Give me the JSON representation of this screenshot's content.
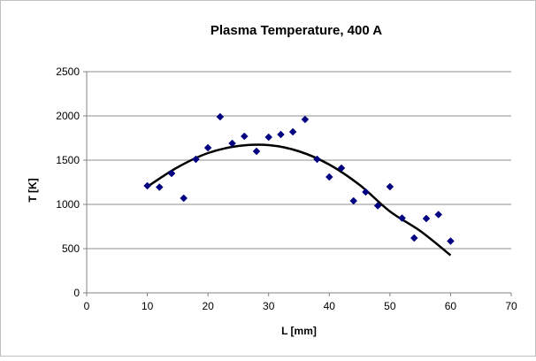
{
  "chart_data": {
    "type": "scatter",
    "title": "Plasma Temperature, 400 A",
    "xlabel": "L [mm]",
    "ylabel": "T [K]",
    "xlim": [
      0,
      70
    ],
    "ylim": [
      0,
      2500
    ],
    "x_ticks": [
      0,
      10,
      20,
      30,
      40,
      50,
      60,
      70
    ],
    "y_ticks": [
      0,
      500,
      1000,
      1500,
      2000,
      2500
    ],
    "x_tick_labels": [
      "0",
      "10",
      "20",
      "30",
      "40",
      "50",
      "60",
      "70"
    ],
    "y_tick_labels": [
      "0",
      "500",
      "1000",
      "1500",
      "2000",
      "2500"
    ],
    "grid": "horizontal",
    "legend": "none",
    "series": [
      {
        "marker": "diamond",
        "color": "#000080",
        "points": [
          [
            10,
            1210
          ],
          [
            12,
            1195
          ],
          [
            14,
            1350
          ],
          [
            16,
            1070
          ],
          [
            18,
            1510
          ],
          [
            20,
            1640
          ],
          [
            22,
            1990
          ],
          [
            24,
            1690
          ],
          [
            26,
            1770
          ],
          [
            28,
            1600
          ],
          [
            30,
            1760
          ],
          [
            32,
            1790
          ],
          [
            34,
            1820
          ],
          [
            36,
            1960
          ],
          [
            38,
            1510
          ],
          [
            40,
            1310
          ],
          [
            42,
            1410
          ],
          [
            44,
            1040
          ],
          [
            46,
            1140
          ],
          [
            48,
            985
          ],
          [
            50,
            1200
          ],
          [
            52,
            845
          ],
          [
            54,
            620
          ],
          [
            56,
            840
          ],
          [
            58,
            885
          ],
          [
            60,
            585
          ]
        ]
      }
    ],
    "trendline": {
      "type": "polynomial",
      "order": 2,
      "color": "#000000",
      "x_range": [
        10,
        60
      ],
      "points": [
        [
          10,
          1200
        ],
        [
          15,
          1420
        ],
        [
          20,
          1580
        ],
        [
          25,
          1660
        ],
        [
          30,
          1670
        ],
        [
          35,
          1600
        ],
        [
          40,
          1450
        ],
        [
          45,
          1220
        ],
        [
          50,
          920
        ],
        [
          55,
          700
        ],
        [
          60,
          425
        ]
      ]
    }
  }
}
